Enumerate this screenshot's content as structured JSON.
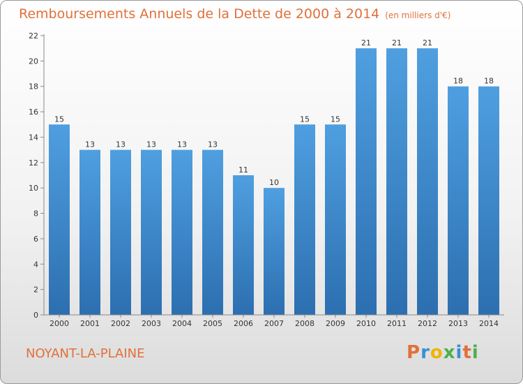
{
  "chart_data": {
    "type": "bar",
    "title": "Remboursements Annuels de la Dette de 2000 à 2014",
    "unit_note": "(en milliers d'€)",
    "categories": [
      "2000",
      "2001",
      "2002",
      "2003",
      "2004",
      "2005",
      "2006",
      "2007",
      "2008",
      "2009",
      "2010",
      "2011",
      "2012",
      "2013",
      "2014"
    ],
    "values": [
      15,
      13,
      13,
      13,
      13,
      13,
      11,
      10,
      15,
      15,
      21,
      21,
      21,
      18,
      18
    ],
    "ylim": [
      0,
      22
    ],
    "yticks": [
      0,
      2,
      4,
      6,
      8,
      10,
      12,
      14,
      16,
      18,
      20,
      22
    ],
    "grid": false,
    "bar_color": "#4f9fe0",
    "bar_color_dark": "#2c6fb0",
    "xlabel": "",
    "ylabel": ""
  },
  "commune": "NOYANT-LA-PLAINE",
  "logo": {
    "letters": [
      "P",
      "r",
      "o",
      "x",
      "i",
      "t",
      "i"
    ],
    "colors": [
      "#e1703a",
      "#3a8fd6",
      "#f0b400",
      "#4caf50",
      "#3a8fd6",
      "#e1703a",
      "#4caf50"
    ]
  }
}
